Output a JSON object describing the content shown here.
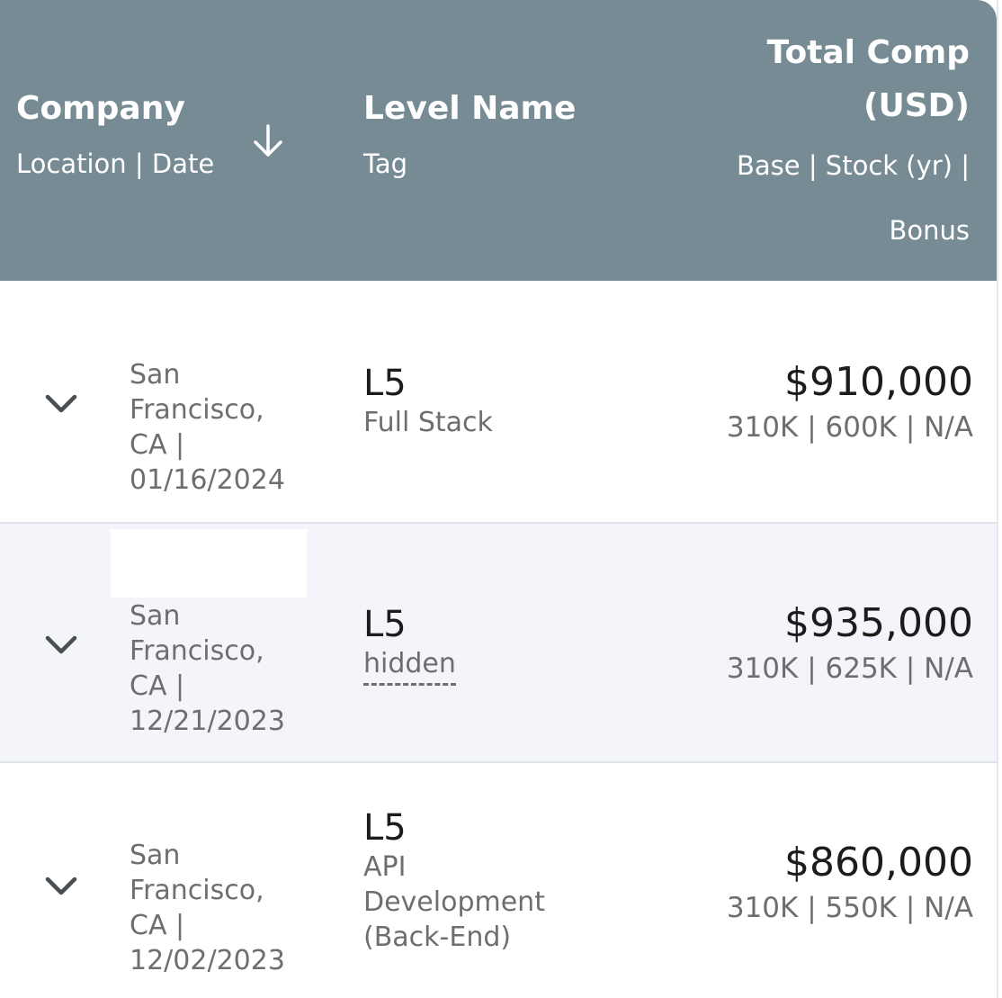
{
  "header": {
    "company": "Company",
    "location_date": "Location | Date",
    "level_name": "Level Name",
    "tag": "Tag",
    "total_comp": "Total Comp",
    "usd": "(USD)",
    "base_stock": "Base | Stock (yr) |",
    "bonus": "Bonus",
    "sort_icon": "arrow-down-icon"
  },
  "rows": [
    {
      "location_lines": [
        "San",
        "Francisco,",
        "CA |",
        "01/16/2024"
      ],
      "level": "L5",
      "tag_lines": [
        "Full Stack"
      ],
      "total": "$910,000",
      "breakdown": "310K | 600K | N/A"
    },
    {
      "location_lines": [
        "San",
        "Francisco,",
        "CA |",
        "12/21/2023"
      ],
      "level": "L5",
      "tag_lines": [
        "hidden"
      ],
      "total": "$935,000",
      "breakdown": "310K | 625K | N/A"
    },
    {
      "location_lines": [
        "San",
        "Francisco,",
        "CA |",
        "12/02/2023"
      ],
      "level": "L5",
      "tag_lines": [
        "API",
        "Development",
        "(Back-End)"
      ],
      "total": "$860,000",
      "breakdown": "310K | 550K | N/A"
    }
  ],
  "icons": {
    "expand": "chevron-down-icon"
  },
  "colors": {
    "header_bg": "#778b95",
    "alt_row_bg": "#f4f5fa",
    "muted_text": "#6e6e6e",
    "strong_text": "#1c1c1c"
  }
}
